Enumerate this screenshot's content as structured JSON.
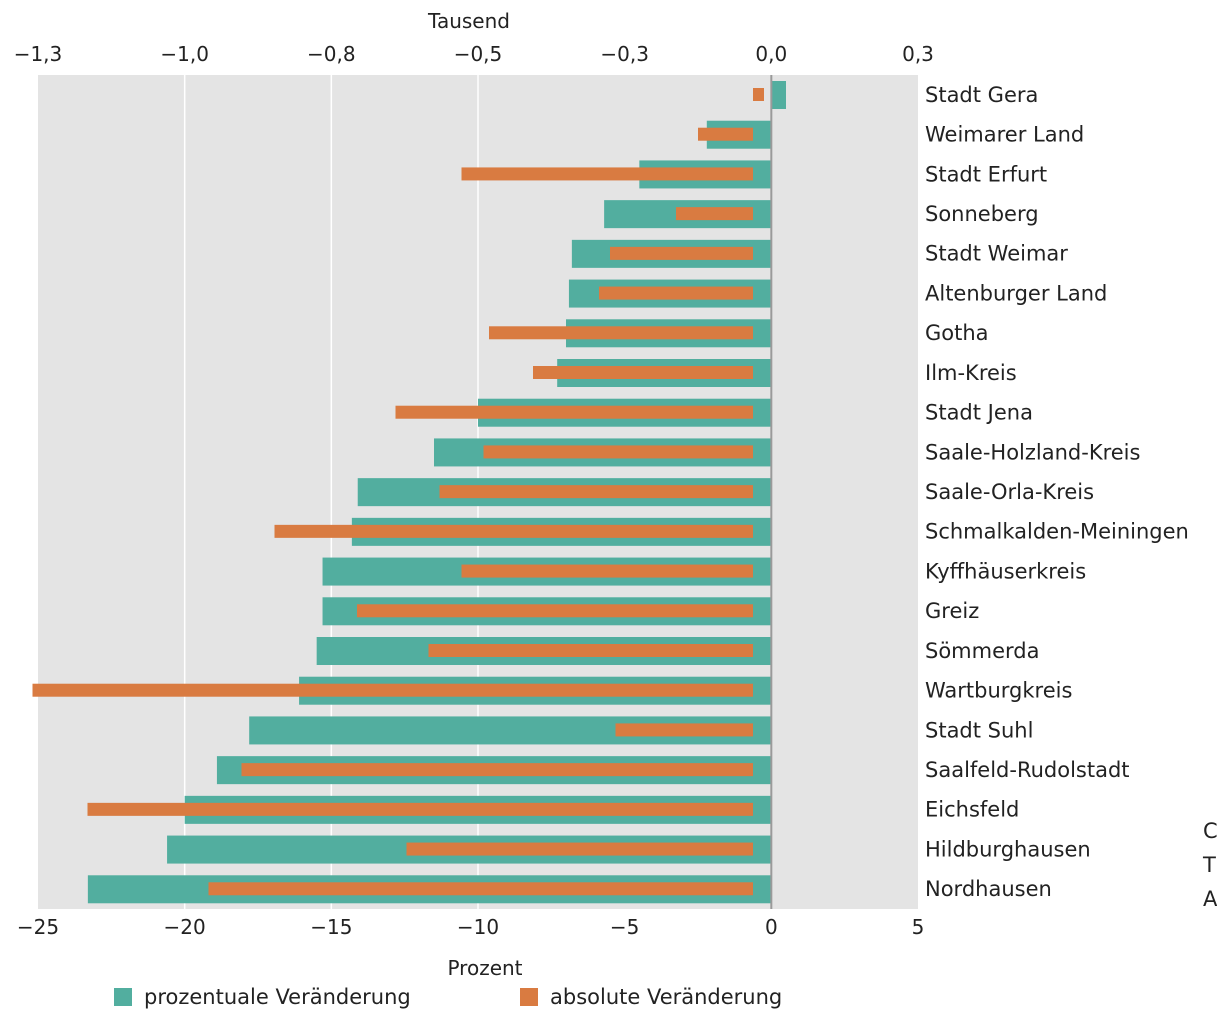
{
  "chart_data": {
    "type": "bar",
    "orientation": "horizontal",
    "x_bottom": {
      "label": "Prozent",
      "range": [
        -25,
        5
      ],
      "ticks": [
        "-25",
        "-20",
        "-15",
        "-10",
        "-5",
        "0",
        "5"
      ]
    },
    "x_top": {
      "label": "Tausend",
      "range": [
        -1.3,
        0.3
      ],
      "ticks": [
        "-1,3",
        "-1,0",
        "-0,8",
        "-0,5",
        "-0,3",
        "0,0",
        "0,3"
      ]
    },
    "grid": true,
    "legend_position": "bottom",
    "categories": [
      "Stadt Gera",
      "Weimarer Land",
      "Stadt Erfurt",
      "Sonneberg",
      "Stadt Weimar",
      "Altenburger Land",
      "Gotha",
      "Ilm-Kreis",
      "Stadt Jena",
      "Saale-Holzland-Kreis",
      "Saale-Orla-Kreis",
      "Schmalkalden-Meiningen",
      "Kyffhäuserkreis",
      "Greiz",
      "Sömmerda",
      "Wartburgkreis",
      "Stadt Suhl",
      "Saalfeld-Rudolstadt",
      "Eichsfeld",
      "Hildburghausen",
      "Nordhausen"
    ],
    "series": [
      {
        "name": "prozentuale Veränderung",
        "axis": "bottom",
        "unit": "Prozent",
        "color": "#52ae9f",
        "values": [
          0.5,
          -2.2,
          -4.5,
          -5.7,
          -6.8,
          -6.9,
          -7.0,
          -7.3,
          -10.0,
          -11.5,
          -14.1,
          -14.3,
          -15.3,
          -15.3,
          -15.5,
          -16.1,
          -17.8,
          -18.9,
          -20.0,
          -20.6,
          -23.3
        ]
      },
      {
        "name": "absolute Veränderung",
        "axis": "top",
        "unit": "Tausend",
        "color": "#d97b41",
        "values": [
          0.02,
          -0.1,
          -0.53,
          -0.14,
          -0.26,
          -0.28,
          -0.48,
          -0.4,
          -0.65,
          -0.49,
          -0.57,
          -0.87,
          -0.53,
          -0.72,
          -0.59,
          -1.31,
          -0.25,
          -0.93,
          -1.21,
          -0.63,
          -0.99
        ]
      }
    ]
  },
  "right_edge_text": [
    "C",
    "T",
    "A"
  ]
}
